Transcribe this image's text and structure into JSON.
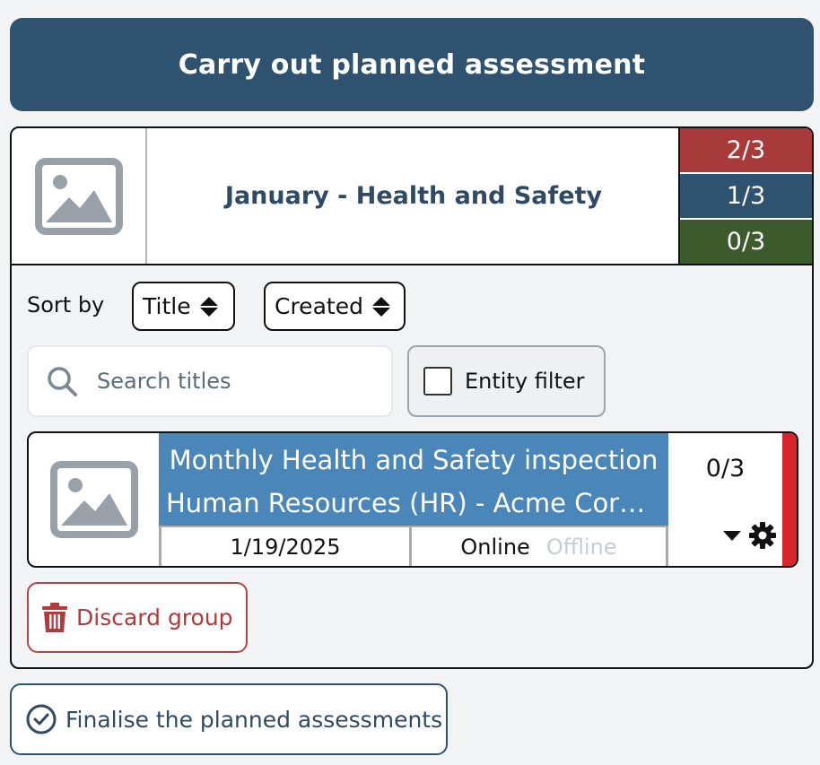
{
  "header": {
    "title": "Carry out planned assessment"
  },
  "group": {
    "title": "January - Health and Safety",
    "thumbnail_icon": "image-placeholder-icon",
    "counts": [
      {
        "label": "2/3",
        "color": "#a83a3c"
      },
      {
        "label": "1/3",
        "color": "#2f526e"
      },
      {
        "label": "0/3",
        "color": "#3d5a2d"
      }
    ]
  },
  "sort": {
    "label": "Sort by",
    "options": [
      "Title",
      "Created"
    ]
  },
  "search": {
    "placeholder": "Search titles",
    "value": ""
  },
  "entity_filter": {
    "label": "Entity filter",
    "checked": false
  },
  "items": [
    {
      "title": "Monthly Health and Safety inspection",
      "subtitle": "Human Resources (HR) - Acme Corpor...",
      "date": "1/19/2025",
      "mode_online": "Online",
      "mode_offline": "Offline",
      "count": "0/3",
      "status_color": "#d9252b"
    }
  ],
  "actions": {
    "discard": "Discard group",
    "finalise": "Finalise the planned assessments"
  },
  "colors": {
    "accent": "#2f526e",
    "item_title_bg": "#4a86b8",
    "danger": "#b03a3c"
  }
}
